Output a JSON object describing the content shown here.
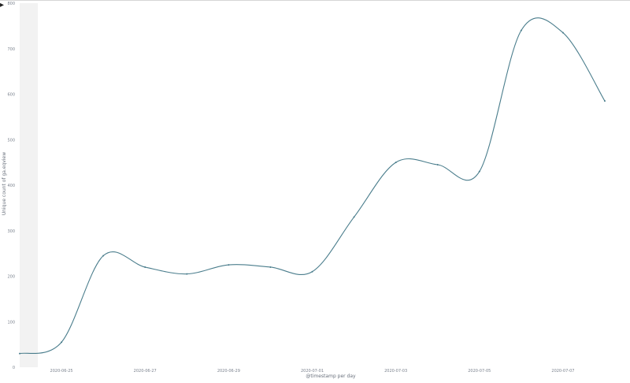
{
  "panel": {
    "toggle_icon": "chevron-right-icon"
  },
  "chart_data": {
    "type": "line",
    "x_tick_labels": [
      "2020-06-25",
      "2020-06-27",
      "2020-06-29",
      "2020-07-01",
      "2020-07-03",
      "2020-07-05",
      "2020-07-07"
    ],
    "y_tick_labels": [
      "0",
      "100",
      "200",
      "300",
      "400",
      "500",
      "600",
      "700",
      "800"
    ],
    "xlabel": "@timestamp per day",
    "ylabel": "Unique count of ga.eqview",
    "ylim": [
      0,
      800
    ],
    "xlim": [
      "2020-06-24",
      "2020-07-08"
    ],
    "series": [
      {
        "x": [
          "2020-06-24",
          "2020-06-25",
          "2020-06-26",
          "2020-06-27",
          "2020-06-28",
          "2020-06-29",
          "2020-06-30",
          "2020-07-01",
          "2020-07-02",
          "2020-07-03",
          "2020-07-04",
          "2020-07-05",
          "2020-07-06",
          "2020-07-07",
          "2020-07-08"
        ],
        "values": [
          30,
          55,
          245,
          220,
          205,
          225,
          220,
          210,
          330,
          450,
          445,
          430,
          740,
          735,
          585
        ],
        "color": "#4a7d8c"
      }
    ],
    "grid": false,
    "legend": "none",
    "highlight_band": {
      "color": "#f2f2f2"
    }
  }
}
